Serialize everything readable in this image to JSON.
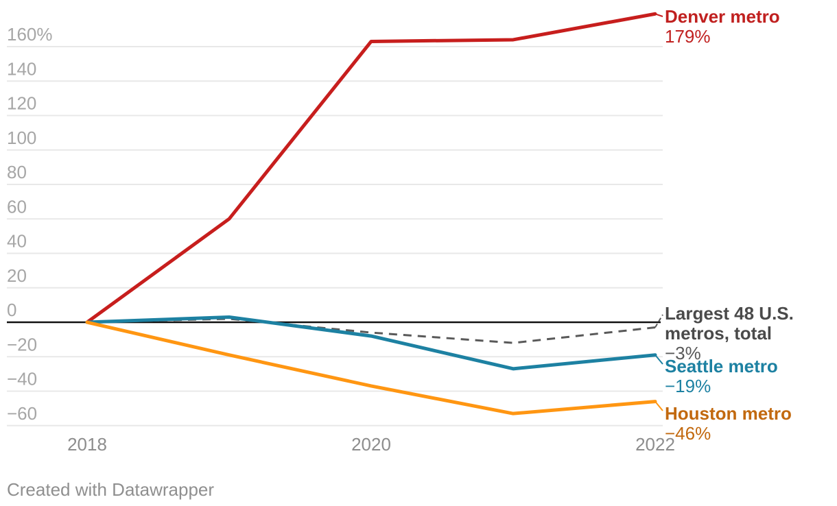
{
  "chart_data": {
    "type": "line",
    "x": [
      2018,
      2019,
      2020,
      2021,
      2022
    ],
    "x_ticks": [
      {
        "v": 2018,
        "label": "2018"
      },
      {
        "v": 2020,
        "label": "2020"
      },
      {
        "v": 2022,
        "label": "2022"
      }
    ],
    "y_ticks": [
      {
        "v": -60,
        "label": "−60"
      },
      {
        "v": -40,
        "label": "−40"
      },
      {
        "v": -20,
        "label": "−20"
      },
      {
        "v": 0,
        "label": "0"
      },
      {
        "v": 20,
        "label": "20"
      },
      {
        "v": 40,
        "label": "40"
      },
      {
        "v": 60,
        "label": "60"
      },
      {
        "v": 80,
        "label": "80"
      },
      {
        "v": 100,
        "label": "100"
      },
      {
        "v": 120,
        "label": "120"
      },
      {
        "v": 140,
        "label": "140"
      },
      {
        "v": 160,
        "label": "160%"
      }
    ],
    "ylim": [
      -60,
      179
    ],
    "grid": true,
    "baseline_value": 0,
    "legend_position": "right-of-line-ends",
    "series": [
      {
        "name": "Denver metro",
        "values": [
          0,
          60,
          163,
          164,
          179
        ],
        "end_label": "179%",
        "line_color": "#c71e1d",
        "label_color": "#c0201f",
        "dashed": false
      },
      {
        "name": "Largest 48 U.S. metros, total",
        "values": [
          0,
          2,
          -6,
          -12,
          -3
        ],
        "end_label": "−3%",
        "line_color": "#595959",
        "label_color": "#4a4a4a",
        "value_color": "#595959",
        "dashed": true
      },
      {
        "name": "Seattle metro",
        "values": [
          0,
          3,
          -8,
          -27,
          -19
        ],
        "end_label": "−19%",
        "line_color": "#1d81a2",
        "label_color": "#1d81a2",
        "dashed": false
      },
      {
        "name": "Houston metro",
        "values": [
          0,
          -19,
          -37,
          -53,
          -46
        ],
        "end_label": "−46%",
        "line_color": "#ff9612",
        "label_color": "#c2690f",
        "dashed": false
      }
    ]
  },
  "axis_colors": {
    "gridline": "#e8e8e8",
    "zero_line": "#111111",
    "y_tick_text": "#a6a6a6",
    "x_tick_text": "#8d8d8d"
  },
  "footer": {
    "text": "Created with Datawrapper"
  }
}
